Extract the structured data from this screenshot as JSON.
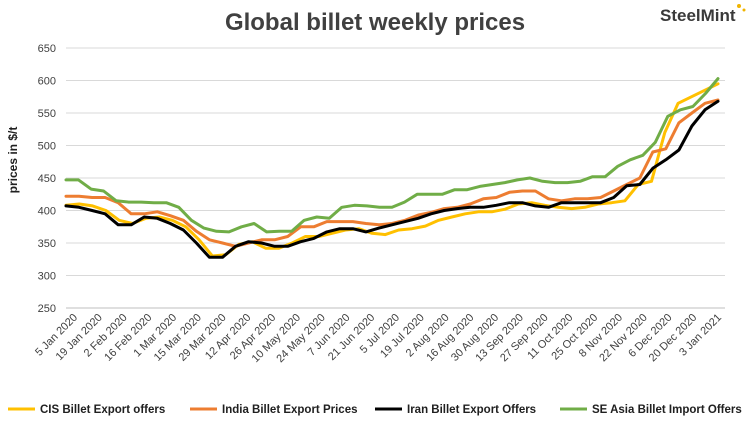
{
  "chart_data": {
    "type": "line",
    "title": "Global billet weekly prices",
    "brand": "SteelMint",
    "xlabel": "",
    "ylabel": "prices in $/t",
    "ylim": [
      250,
      650
    ],
    "yticks": [
      250,
      300,
      350,
      400,
      450,
      500,
      550,
      600,
      650
    ],
    "grid": true,
    "legend_position": "bottom",
    "x_tick_labels": [
      "5 Jan 2020",
      "19 Jan 2020",
      "2 Feb 2020",
      "16 Feb 2020",
      "1 Mar 2020",
      "15 Mar 2020",
      "29 Mar 2020",
      "12 Apr 2020",
      "26 Apr 2020",
      "10 May 2020",
      "24 May 2020",
      "7 Jun 2020",
      "21 Jun 2020",
      "5 Jul 2020",
      "19 Jul 2020",
      "2 Aug 2020",
      "16 Aug 2020",
      "30 Aug 2020",
      "13 Sep 2020",
      "27 Sep 2020",
      "11 Oct 2020",
      "25 Oct 2020",
      "8 Nov 2020",
      "22 Nov 2020",
      "6 Dec 2020",
      "20 Dec 2020",
      "3 Jan 2021"
    ],
    "series": [
      {
        "name": "CIS Billet Export offers",
        "color": "#ffc000",
        "values": [
          408,
          410,
          407,
          400,
          385,
          380,
          388,
          390,
          385,
          375,
          355,
          330,
          332,
          348,
          352,
          342,
          342,
          350,
          360,
          360,
          365,
          370,
          372,
          365,
          363,
          370,
          372,
          376,
          385,
          390,
          395,
          398,
          398,
          402,
          410,
          412,
          408,
          405,
          403,
          405,
          410,
          412,
          415,
          440,
          445,
          520,
          565,
          575,
          585,
          595
        ]
      },
      {
        "name": "India Billet Export Prices",
        "color": "#ed7d31",
        "values": [
          422,
          422,
          420,
          420,
          412,
          395,
          395,
          398,
          392,
          385,
          368,
          355,
          350,
          345,
          350,
          355,
          355,
          360,
          375,
          375,
          383,
          383,
          383,
          380,
          378,
          380,
          385,
          393,
          397,
          403,
          405,
          410,
          418,
          420,
          428,
          430,
          430,
          418,
          415,
          418,
          418,
          420,
          430,
          440,
          450,
          490,
          495,
          535,
          550,
          565,
          570
        ]
      },
      {
        "name": "Iran Billet Export Offers",
        "color": "#000000",
        "values": [
          407,
          405,
          400,
          395,
          378,
          378,
          390,
          388,
          380,
          370,
          350,
          328,
          328,
          345,
          352,
          350,
          345,
          345,
          352,
          357,
          367,
          372,
          372,
          367,
          373,
          378,
          383,
          388,
          395,
          400,
          403,
          405,
          405,
          408,
          412,
          412,
          407,
          405,
          412,
          412,
          412,
          412,
          420,
          438,
          440,
          465,
          478,
          493,
          530,
          555,
          568
        ]
      },
      {
        "name": "SE Asia Billet Import Offers",
        "color": "#70ad47",
        "values": [
          447,
          447,
          433,
          430,
          415,
          413,
          413,
          412,
          412,
          405,
          385,
          373,
          368,
          367,
          375,
          380,
          367,
          368,
          368,
          385,
          390,
          388,
          405,
          408,
          407,
          405,
          405,
          413,
          425,
          425,
          425,
          432,
          432,
          437,
          440,
          443,
          447,
          450,
          445,
          443,
          443,
          445,
          452,
          452,
          468,
          478,
          485,
          505,
          545,
          555,
          560,
          580,
          603
        ]
      }
    ]
  }
}
